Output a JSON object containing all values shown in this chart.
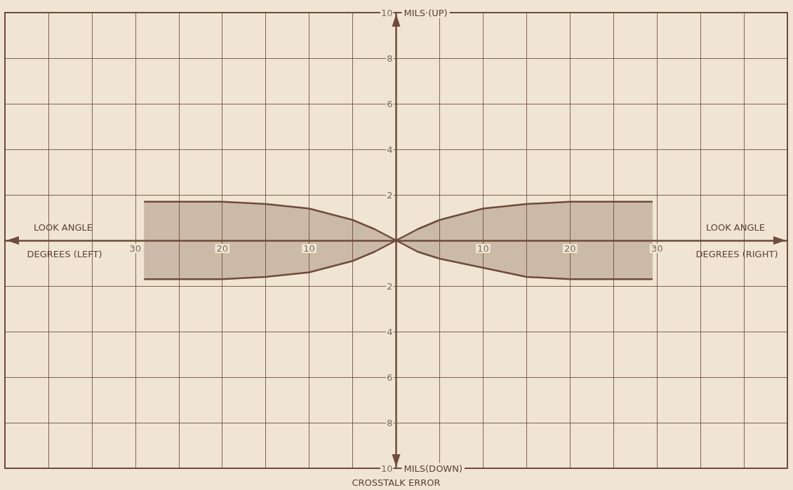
{
  "chart_data": {
    "type": "area",
    "annotations": [
      "MILS·(UP)",
      "MILS(DOWN)",
      "LOOK ANGLE DEGREES (LEFT)",
      "LOOK ANGLE DEGREES (RIGHT)",
      "CROSSTALK ERROR"
    ],
    "series": [
      {
        "color": "#6e4b3b",
        "x": [
          -29,
          -25,
          -20,
          -15,
          -10,
          -5,
          -2.5,
          0,
          2.5,
          5,
          10,
          15,
          20,
          25,
          29.5
        ],
        "values": [
          1.7,
          1.7,
          1.7,
          1.6,
          1.4,
          0.9,
          0.5,
          0,
          0.5,
          0.9,
          1.4,
          1.6,
          1.7,
          1.7,
          1.7
        ]
      },
      {
        "color": "#6e4b3b",
        "x": [
          -29,
          -25,
          -20,
          -15,
          -10,
          -5,
          -2.5,
          0,
          2.5,
          5,
          10,
          15,
          20,
          25,
          29.5
        ],
        "values": [
          -1.7,
          -1.7,
          -1.7,
          -1.6,
          -1.4,
          -0.9,
          -0.5,
          0,
          -0.5,
          -0.8,
          -1.2,
          -1.6,
          -1.7,
          -1.7,
          -1.7
        ]
      }
    ],
    "xlim": [
      -45,
      45
    ],
    "xticks": [
      {
        "value": -45,
        "label": null
      },
      {
        "value": -40,
        "label": null
      },
      {
        "value": -35,
        "label": null
      },
      {
        "value": -30,
        "label": "30"
      },
      {
        "value": -25,
        "label": null
      },
      {
        "value": -20,
        "label": "20"
      },
      {
        "value": -15,
        "label": null
      },
      {
        "value": -10,
        "label": "10"
      },
      {
        "value": -5,
        "label": null
      },
      {
        "value": 0,
        "label": null
      },
      {
        "value": 5,
        "label": null
      },
      {
        "value": 10,
        "label": "10"
      },
      {
        "value": 15,
        "label": null
      },
      {
        "value": 20,
        "label": "20"
      },
      {
        "value": 25,
        "label": null
      },
      {
        "value": 30,
        "label": "30"
      },
      {
        "value": 35,
        "label": null
      },
      {
        "value": 40,
        "label": null
      },
      {
        "value": 45,
        "label": null
      }
    ],
    "ylim": [
      -10,
      10
    ],
    "yticks": [
      {
        "value": -10,
        "label": "10"
      },
      {
        "value": -8,
        "label": "8"
      },
      {
        "value": -6,
        "label": "6"
      },
      {
        "value": -4,
        "label": "4"
      },
      {
        "value": -2,
        "label": "2"
      },
      {
        "value": 0,
        "label": null
      },
      2,
      4,
      6,
      8,
      10
    ],
    "grid": true
  }
}
